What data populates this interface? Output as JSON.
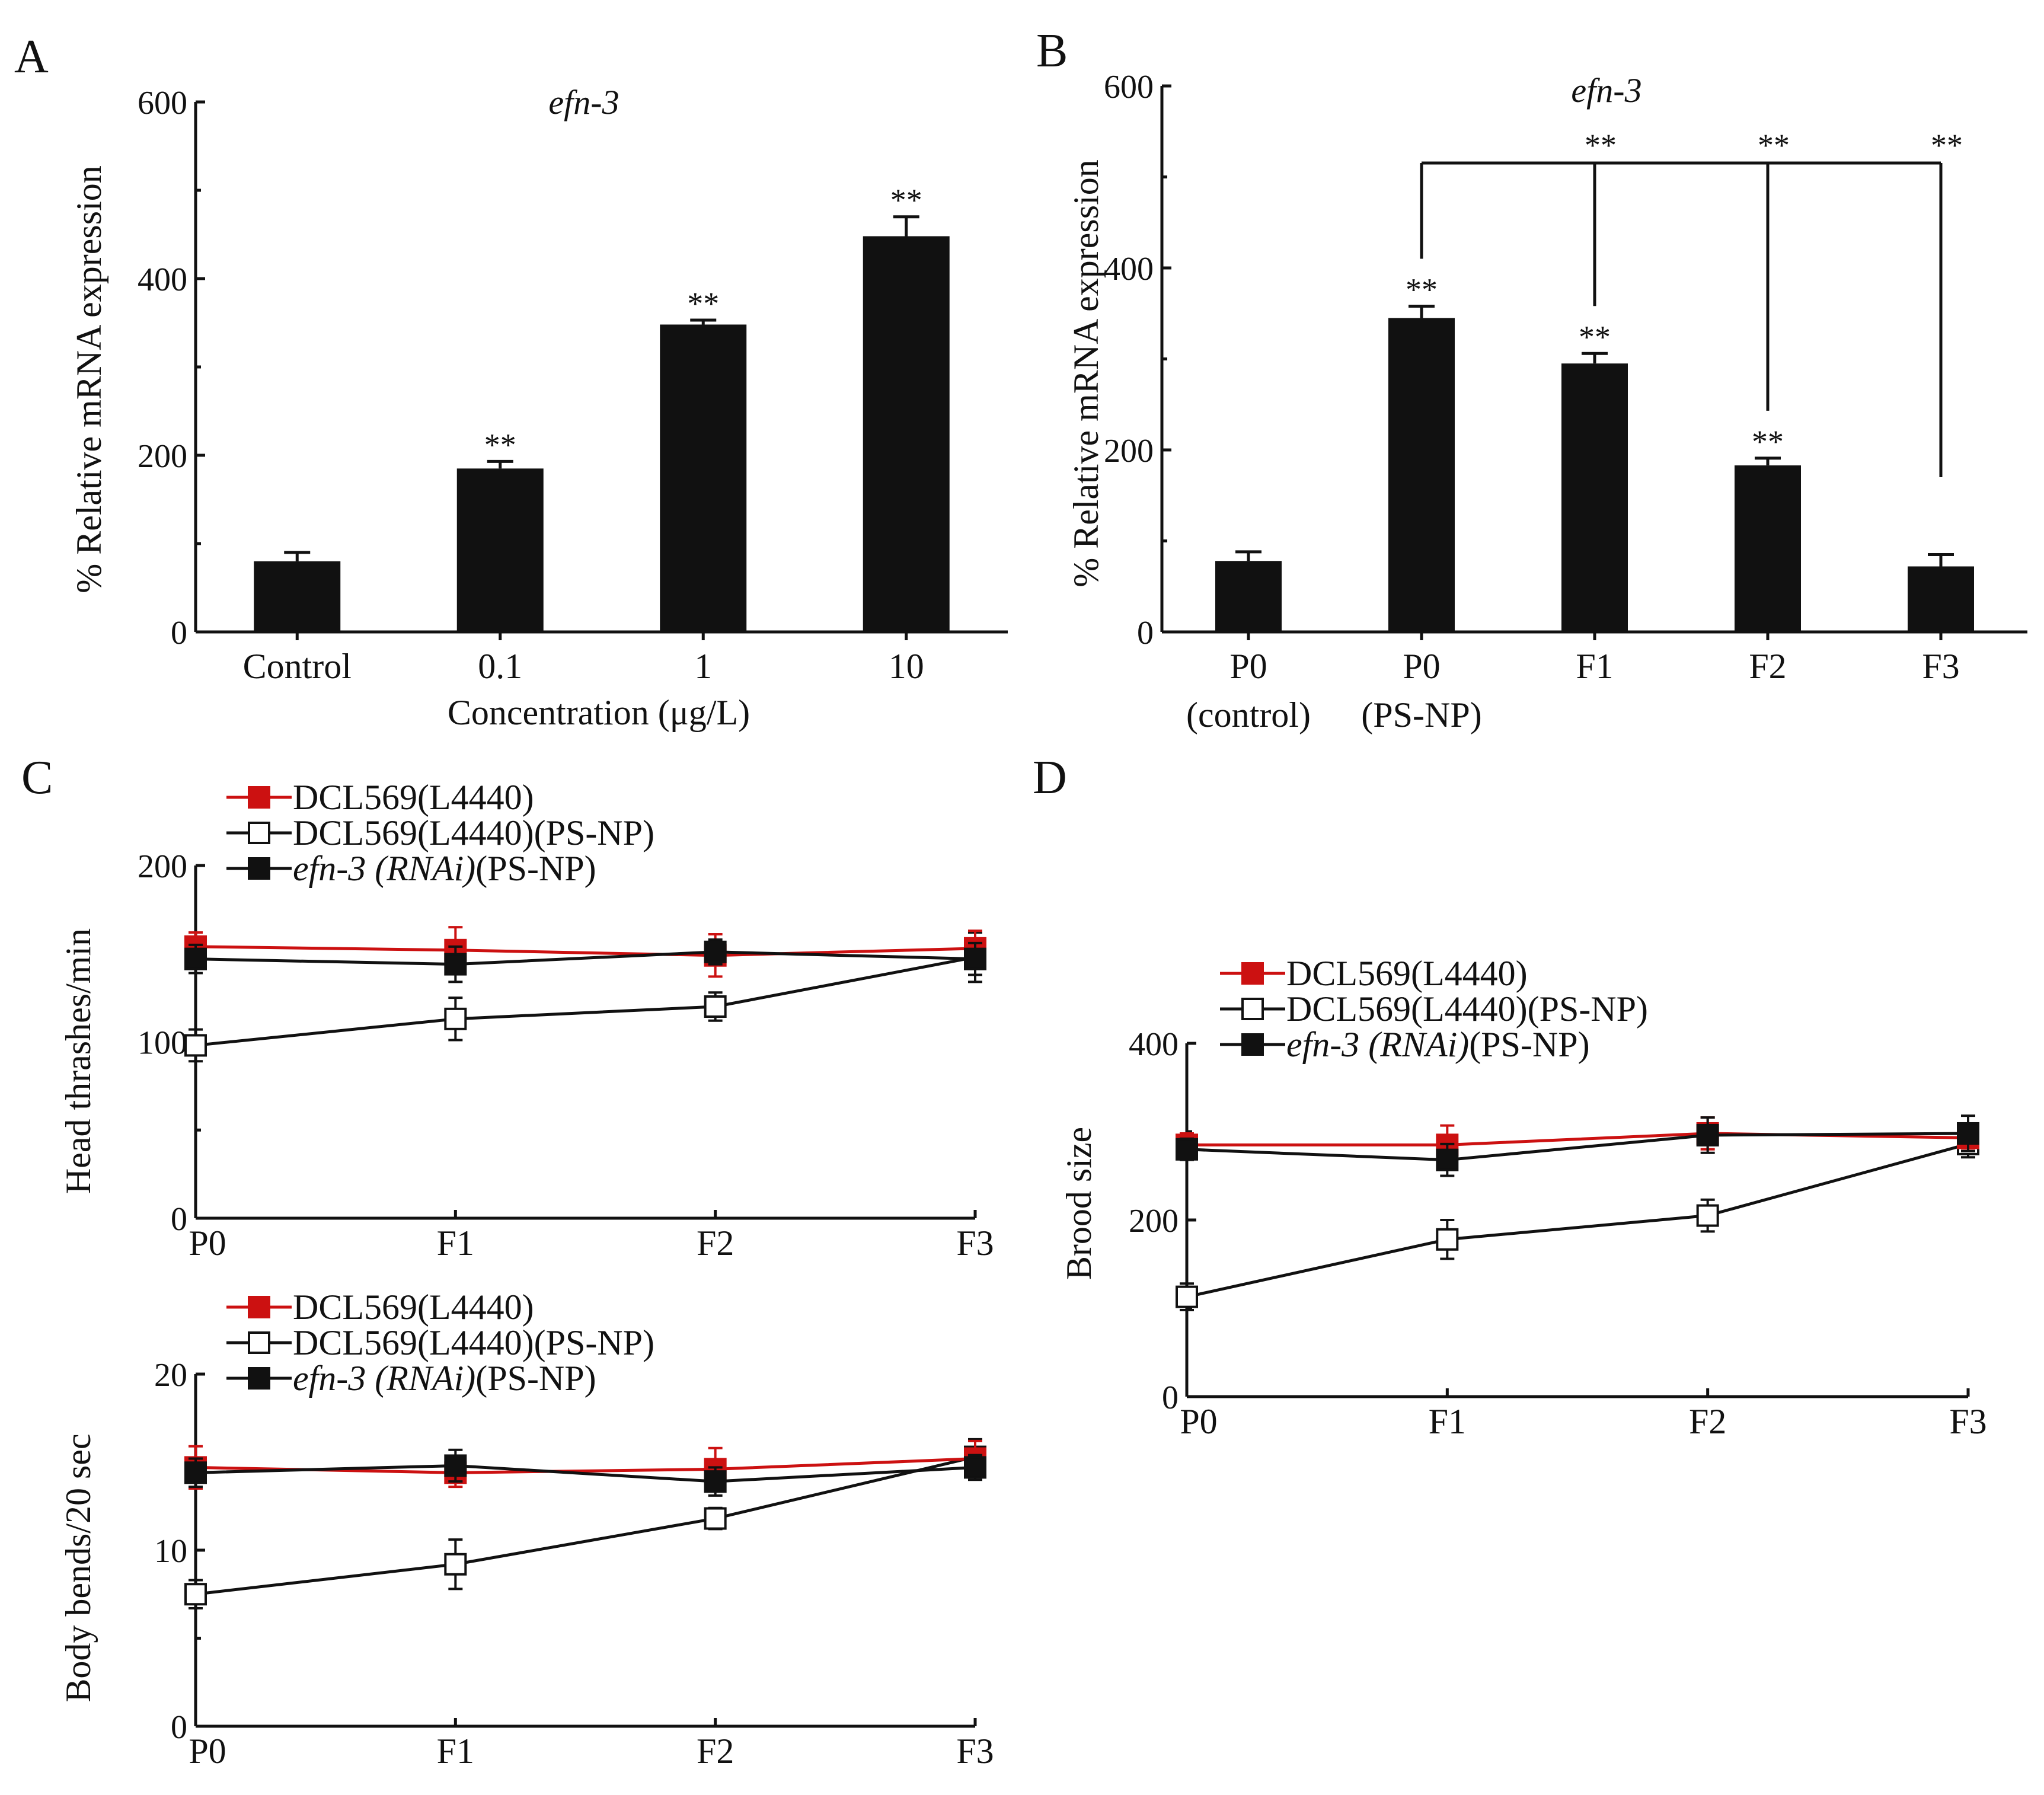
{
  "colors": {
    "red": "#cc1111",
    "black": "#111111",
    "white": "#ffffff"
  },
  "chart_data": [
    {
      "panel": "A",
      "type": "bar",
      "title": "efn-3",
      "ylabel": "% Relative mRNA expression",
      "xlabel": "Concentration (μg/L)",
      "categories": [
        "Control",
        "0.1",
        "1",
        "10"
      ],
      "values": [
        80,
        185,
        348,
        448
      ],
      "errors": [
        10,
        8,
        5,
        22
      ],
      "significance": [
        "",
        "**",
        "**",
        "**"
      ],
      "ylim": [
        0,
        600
      ],
      "yticks": [
        "0",
        "200",
        "400",
        "600"
      ]
    },
    {
      "panel": "B",
      "type": "bar",
      "title": "efn-3",
      "ylabel": "% Relative mRNA expression",
      "categories": [
        "P0",
        "P0",
        "F1",
        "F2",
        "F3"
      ],
      "category_sublabels": [
        "(control)",
        "(PS-NP)",
        "",
        "",
        ""
      ],
      "values": [
        78,
        345,
        295,
        183,
        72
      ],
      "errors": [
        10,
        13,
        11,
        8,
        13
      ],
      "significance": [
        "",
        "**",
        "**",
        "**",
        ""
      ],
      "bracket_significance": [
        "**",
        "**",
        "**"
      ],
      "ylim": [
        0,
        600
      ],
      "yticks": [
        "0",
        "200",
        "400",
        "600"
      ]
    },
    {
      "panel": "C",
      "type": "line",
      "ylabel": "Head thrashes/min",
      "x": [
        "P0",
        "F1",
        "F2",
        "F3"
      ],
      "ylim": [
        0,
        200
      ],
      "yticks": [
        "0",
        "100",
        "200"
      ],
      "series": [
        {
          "name": "DCL569(L4440)",
          "values": [
            154,
            152,
            149,
            153
          ],
          "errors": [
            8,
            13,
            12,
            10
          ]
        },
        {
          "name": "DCL569(L4440)(PS-NP)",
          "values": [
            98,
            113,
            120,
            148
          ],
          "errors": [
            9,
            12,
            8,
            14
          ]
        },
        {
          "name": "efn-3 (RNAi)(PS-NP)",
          "values": [
            147,
            144,
            151,
            147
          ],
          "errors": [
            8,
            10,
            7,
            9
          ]
        }
      ]
    },
    {
      "panel": "C2",
      "type": "line",
      "ylabel": "Body bends/20 sec",
      "x": [
        "P0",
        "F1",
        "F2",
        "F3"
      ],
      "ylim": [
        0,
        20
      ],
      "yticks": [
        "0",
        "10",
        "20"
      ],
      "series": [
        {
          "name": "DCL569(L4440)",
          "values": [
            14.7,
            14.4,
            14.6,
            15.2
          ],
          "errors": [
            1.2,
            0.8,
            1.2,
            1.0
          ]
        },
        {
          "name": "DCL569(L4440)(PS-NP)",
          "values": [
            7.5,
            9.2,
            11.8,
            15.3
          ],
          "errors": [
            0.8,
            1.4,
            0.6,
            1.0
          ]
        },
        {
          "name": "efn-3 (RNAi)(PS-NP)",
          "values": [
            14.4,
            14.8,
            13.9,
            14.7
          ],
          "errors": [
            0.8,
            0.9,
            0.8,
            0.7
          ]
        }
      ]
    },
    {
      "panel": "D",
      "type": "line",
      "ylabel": "Brood size",
      "x": [
        "P0",
        "F1",
        "F2",
        "F3"
      ],
      "ylim": [
        0,
        400
      ],
      "yticks": [
        "0",
        "200",
        "400"
      ],
      "series": [
        {
          "name": "DCL569(L4440)",
          "values": [
            285,
            285,
            298,
            293
          ],
          "errors": [
            13,
            22,
            18,
            12
          ]
        },
        {
          "name": "DCL569(L4440)(PS-NP)",
          "values": [
            113,
            178,
            205,
            286
          ],
          "errors": [
            15,
            22,
            18,
            15
          ]
        },
        {
          "name": "efn-3 (RNAi)(PS-NP)",
          "values": [
            280,
            268,
            296,
            298
          ],
          "errors": [
            12,
            18,
            20,
            20
          ]
        }
      ]
    }
  ],
  "panel_letters": [
    "A",
    "B",
    "C",
    "D"
  ],
  "legend": {
    "red": "DCL569(L4440)",
    "white": "DCL569(L4440)(PS-NP)",
    "black_italic": "efn-3 (RNAi)",
    "black_suffix": "(PS-NP)"
  }
}
